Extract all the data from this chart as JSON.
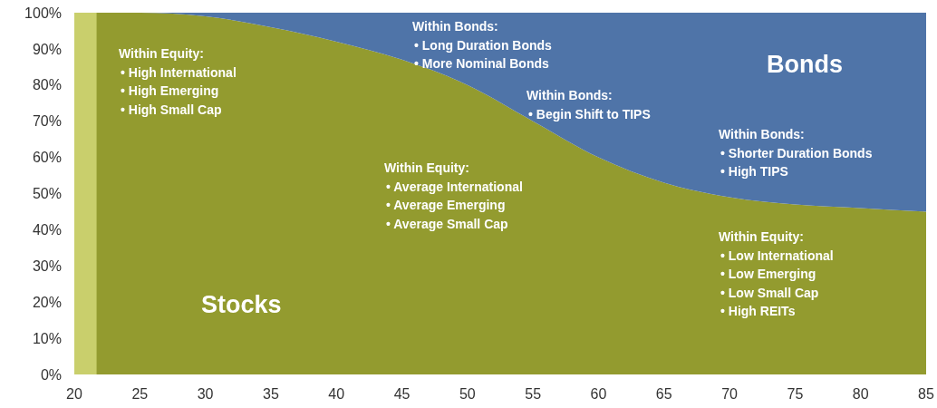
{
  "chart_data": {
    "type": "area",
    "stacked": true,
    "x": [
      20,
      25,
      30,
      35,
      40,
      45,
      50,
      55,
      60,
      65,
      70,
      75,
      80,
      85
    ],
    "series": [
      {
        "name": "Stocks",
        "color": "#939b2f",
        "values": [
          100,
          100,
          99,
          96,
          92,
          87,
          80,
          70,
          60,
          53,
          49,
          47,
          46,
          45
        ]
      },
      {
        "name": "Bonds",
        "color": "#4f74a8",
        "values": [
          0,
          0,
          1,
          4,
          8,
          13,
          20,
          30,
          40,
          47,
          51,
          53,
          54,
          55
        ]
      }
    ],
    "xlim": [
      20,
      85
    ],
    "xticks": [
      20,
      25,
      30,
      35,
      40,
      45,
      50,
      55,
      60,
      65,
      70,
      75,
      80,
      85
    ],
    "ylim": [
      0,
      100
    ],
    "yticks": [
      {
        "value": 0,
        "label": "0%"
      },
      {
        "value": 10,
        "label": "10%"
      },
      {
        "value": 20,
        "label": "20%"
      },
      {
        "value": 30,
        "label": "30%"
      },
      {
        "value": 40,
        "label": "40%"
      },
      {
        "value": 50,
        "label": "50%"
      },
      {
        "value": 60,
        "label": "60%"
      },
      {
        "value": 70,
        "label": "70%"
      },
      {
        "value": 80,
        "label": "80%"
      },
      {
        "value": 90,
        "label": "90%"
      },
      {
        "value": 100,
        "label": "100%"
      }
    ],
    "bands": [
      {
        "axis": "x",
        "from": 20,
        "to": 21.7,
        "color": "#c9cf6c"
      }
    ],
    "annotations": [
      "Within Equity:\n• High International\n• High Emerging\n• High Small Cap",
      "Within Bonds:\n• Long Duration Bonds\n• More Nominal Bonds",
      "Within Bonds:\n• Begin Shift to TIPS",
      "Within Equity:\n• Average International\n• Average Emerging\n• Average Small Cap",
      "Within Bonds:\n• Shorter Duration Bonds\n• High TIPS",
      "Within Equity:\n• Low International\n• Low Emerging\n• Low Small Cap\n• High REITs"
    ]
  }
}
